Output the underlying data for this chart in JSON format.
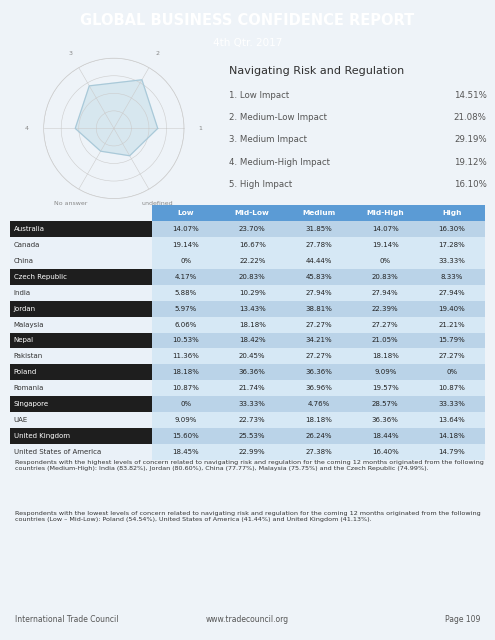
{
  "title": "GLOBAL BUSINESS CONFIDENCE REPORT",
  "subtitle_text": "4th Qtr. 2017",
  "header_bg": "#5b9bd5",
  "section_title": "Navigating Risk and Regulation",
  "radar_categories": [
    "1",
    "2",
    "3",
    "4",
    "No answer",
    "undefined"
  ],
  "radar_values": [
    2.5,
    3.2,
    2.8,
    2.2,
    1.5,
    1.8
  ],
  "radar_grid_max": 4,
  "legend_items": [
    {
      "label": "1. Low Impact",
      "value": "14.51%"
    },
    {
      "label": "2. Medium-Low Impact",
      "value": "21.08%"
    },
    {
      "label": "3. Medium Impact",
      "value": "29.19%"
    },
    {
      "label": "4. Medium-High Impact",
      "value": "19.12%"
    },
    {
      "label": "5. High Impact",
      "value": "16.10%"
    }
  ],
  "table_header": [
    "",
    "Low",
    "Mid-Low",
    "Medium",
    "Mid-High",
    "High"
  ],
  "table_data": [
    [
      "Australia",
      "14.07%",
      "23.70%",
      "31.85%",
      "14.07%",
      "16.30%"
    ],
    [
      "Canada",
      "19.14%",
      "16.67%",
      "27.78%",
      "19.14%",
      "17.28%"
    ],
    [
      "China",
      "0%",
      "22.22%",
      "44.44%",
      "0%",
      "33.33%"
    ],
    [
      "Czech Republic",
      "4.17%",
      "20.83%",
      "45.83%",
      "20.83%",
      "8.33%"
    ],
    [
      "India",
      "5.88%",
      "10.29%",
      "27.94%",
      "27.94%",
      "27.94%"
    ],
    [
      "Jordan",
      "5.97%",
      "13.43%",
      "38.81%",
      "22.39%",
      "19.40%"
    ],
    [
      "Malaysia",
      "6.06%",
      "18.18%",
      "27.27%",
      "27.27%",
      "21.21%"
    ],
    [
      "Nepal",
      "10.53%",
      "18.42%",
      "34.21%",
      "21.05%",
      "15.79%"
    ],
    [
      "Pakistan",
      "11.36%",
      "20.45%",
      "27.27%",
      "18.18%",
      "27.27%"
    ],
    [
      "Poland",
      "18.18%",
      "36.36%",
      "36.36%",
      "9.09%",
      "0%"
    ],
    [
      "Romania",
      "10.87%",
      "21.74%",
      "36.96%",
      "19.57%",
      "10.87%"
    ],
    [
      "Singapore",
      "0%",
      "33.33%",
      "4.76%",
      "28.57%",
      "33.33%"
    ],
    [
      "UAE",
      "9.09%",
      "22.73%",
      "18.18%",
      "36.36%",
      "13.64%"
    ],
    [
      "United Kingdom",
      "15.60%",
      "25.53%",
      "26.24%",
      "18.44%",
      "14.18%"
    ],
    [
      "United States of America",
      "18.45%",
      "22.99%",
      "27.38%",
      "16.40%",
      "14.79%"
    ]
  ],
  "dark_rows": [
    0,
    3,
    5,
    7,
    9,
    11,
    13
  ],
  "row_dark_bg": "#1e1e1e",
  "row_light_bg": "#eaf1f8",
  "row_dark_text": "#ffffff",
  "row_light_text": "#333333",
  "col_header_bg": "#5b9bd5",
  "col_header_text": "#ffffff",
  "data_cell_dark_bg": "#bad3e8",
  "data_cell_light_bg": "#d6e8f5",
  "data_cell_text": "#222222",
  "body_para1": "Respondents with the highest levels of concern related to navigating risk and regulation for the coming 12 months originated from the following countries (Medium-High): India (83.82%), Jordan (80.60%), China (77.77%), Malaysia (75.75%) and the Czech Republic (74.99%).",
  "body_para2": "Respondents with the lowest levels of concern related to navigating risk and regulation for the coming 12 months originated from the following countries (Low – Mid-Low): Poland (54.54%), United States of America (41.44%) and United Kingdom (41.13%).",
  "footer_left": "International Trade Council",
  "footer_center": "www.tradecouncil.org",
  "footer_right": "Page 109",
  "footer_bg": "#dce6f1",
  "page_bg": "#eef3f8"
}
